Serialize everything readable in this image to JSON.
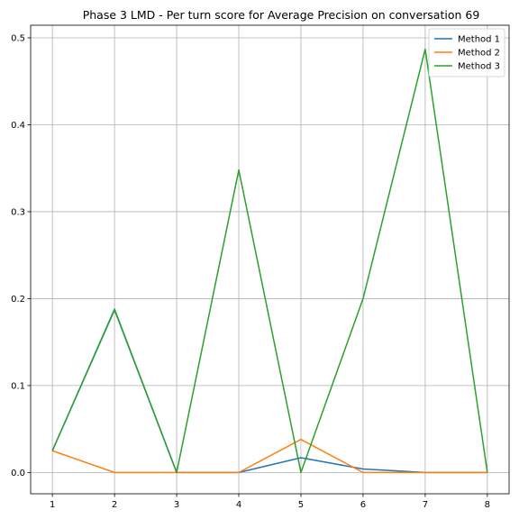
{
  "chart_data": {
    "type": "line",
    "title": "Phase 3 LMD - Per turn score for Average Precision on conversation 69",
    "xlabel": "",
    "ylabel": "",
    "x": [
      1,
      2,
      3,
      4,
      5,
      6,
      7,
      8
    ],
    "xlim": [
      0.65,
      8.35
    ],
    "ylim": [
      -0.0245,
      0.5145
    ],
    "xticks": [
      1,
      2,
      3,
      4,
      5,
      6,
      7,
      8
    ],
    "yticks": [
      0.0,
      0.1,
      0.2,
      0.3,
      0.4,
      0.5
    ],
    "grid": true,
    "legend_position": "top-right",
    "series": [
      {
        "name": "Method 1",
        "color": "#1f77b4",
        "values": [
          0.025,
          0.187,
          0.0,
          0.0,
          0.017,
          0.004,
          0.0,
          0.0
        ]
      },
      {
        "name": "Method 2",
        "color": "#ff7f0e",
        "values": [
          0.025,
          0.0,
          0.0,
          0.0,
          0.038,
          0.0,
          0.0,
          0.0
        ]
      },
      {
        "name": "Method 3",
        "color": "#2ca02c",
        "values": [
          0.025,
          0.188,
          0.0,
          0.348,
          0.0,
          0.2,
          0.487,
          0.0
        ]
      }
    ]
  }
}
